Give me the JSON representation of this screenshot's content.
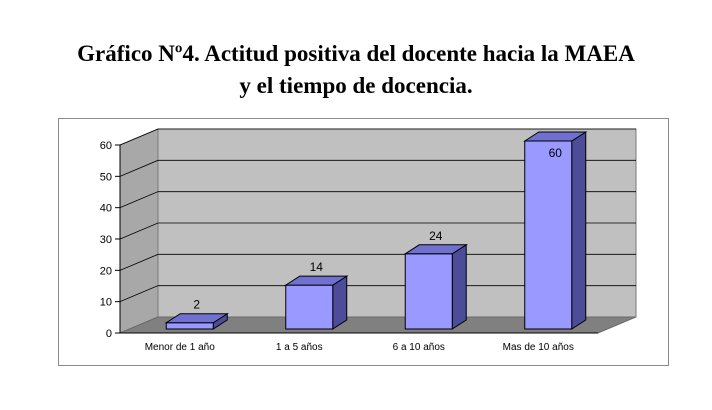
{
  "title": {
    "line1": "Gráfico Nº4. Actitud positiva del docente hacia la MAEA",
    "line2": "y el tiempo de docencia."
  },
  "chart_data": {
    "type": "bar",
    "style": "3d-column",
    "categories": [
      "Menor de 1 año",
      "1 a 5 años",
      "6 a 10 años",
      "Mas de 10 años"
    ],
    "values": [
      2,
      14,
      24,
      60
    ],
    "data_labels": [
      "2",
      "14",
      "24",
      "60"
    ],
    "ylim": [
      0,
      60
    ],
    "yticks": [
      0,
      10,
      20,
      30,
      40,
      50,
      60
    ],
    "grid": true,
    "legend": "none",
    "colors": {
      "bar_front": "#9999ff",
      "bar_side": "#4c4c99",
      "bar_top": "#7070d0",
      "wall": "#c0c0c0",
      "floor": "#808080"
    }
  }
}
